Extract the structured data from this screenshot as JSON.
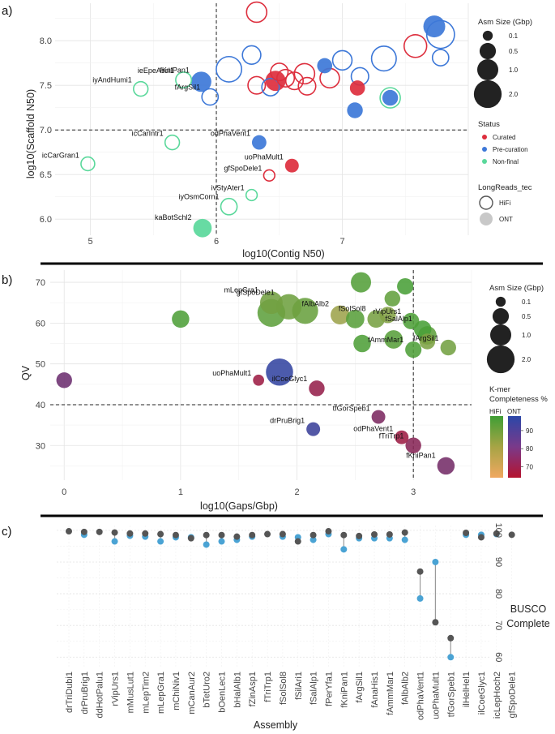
{
  "panels": {
    "a": "a)",
    "b": "b)",
    "c": "c)"
  },
  "colors": {
    "curated": "#dd2e3d",
    "precuration": "#3d78d8",
    "nonfinal": "#5ad89b",
    "busco_hifi": "#555555",
    "busco_ont": "#4aa3d4",
    "kmer_low_hifi": "#f0a860",
    "kmer_high_hifi": "#3f9e35",
    "kmer_low_ont": "#b5142f",
    "kmer_high_ont": "#2b47a8"
  },
  "chart_data": [
    {
      "type": "scatter",
      "id": "a",
      "xlabel": "log10(Contig N50)",
      "ylabel": "log10(Scaffold N50)",
      "xlim": [
        4.72,
        8.0
      ],
      "ylim": [
        5.82,
        8.42
      ],
      "xticks": [
        "5",
        "6",
        "7"
      ],
      "xtick_values": [
        5,
        6,
        7
      ],
      "yticks": [
        "6.0",
        "6.5",
        "7.0",
        "7.5",
        "8.0"
      ],
      "ytick_values": [
        6.0,
        6.5,
        7.0,
        7.5,
        8.0
      ],
      "vline": 6.0,
      "hline": 7.0,
      "legends": {
        "size_title": "Asm Size (Gbp)",
        "size_labels": [
          "0.1",
          "0.5",
          "1.0",
          "2.0"
        ],
        "size_values": [
          0.1,
          0.5,
          1.0,
          2.0
        ],
        "status_title": "Status",
        "status_labels": [
          "Curated",
          "Pre-curation",
          "Non-final"
        ],
        "tech_title": "LongReads_tec",
        "tech_labels": [
          "HiFi",
          "ONT"
        ]
      },
      "points": [
        {
          "x": 4.98,
          "y": 6.62,
          "size": 0.3,
          "status": "nonfinal",
          "tech": "HiFi",
          "label": "icCarGran1"
        },
        {
          "x": 5.65,
          "y": 6.86,
          "size": 0.35,
          "status": "nonfinal",
          "tech": "HiFi",
          "label": "icCarIntr1"
        },
        {
          "x": 5.4,
          "y": 7.46,
          "size": 0.35,
          "status": "nonfinal",
          "tech": "HiFi",
          "label": "iyAndHumi1"
        },
        {
          "x": 5.74,
          "y": 7.56,
          "size": 0.45,
          "status": "nonfinal",
          "tech": "HiFi",
          "label": "ieEpeAssi1"
        },
        {
          "x": 5.88,
          "y": 7.54,
          "size": 0.9,
          "status": "precuration",
          "tech": "ONT",
          "label": "fKniPan1"
        },
        {
          "x": 5.95,
          "y": 7.37,
          "size": 0.5,
          "status": "precuration",
          "tech": "HiFi",
          "label": "fArgSil1"
        },
        {
          "x": 5.89,
          "y": 5.9,
          "size": 0.7,
          "status": "nonfinal",
          "tech": "ONT",
          "label": "kaBotSchl2"
        },
        {
          "x": 6.1,
          "y": 6.14,
          "size": 0.5,
          "status": "nonfinal",
          "tech": "HiFi",
          "label": "iyOsmCorn1"
        },
        {
          "x": 6.28,
          "y": 6.27,
          "size": 0.15,
          "status": "nonfinal",
          "tech": "HiFi",
          "label": "ivStyAter1"
        },
        {
          "x": 6.42,
          "y": 6.49,
          "size": 0.15,
          "status": "curated",
          "tech": "HiFi",
          "label": "gfSpoDele1"
        },
        {
          "x": 6.6,
          "y": 6.6,
          "size": 0.3,
          "status": "curated",
          "tech": "ONT",
          "label": "uoPhaMult1"
        },
        {
          "x": 6.34,
          "y": 6.86,
          "size": 0.35,
          "status": "precuration",
          "tech": "ONT",
          "label": "odPhaVent1"
        },
        {
          "x": 6.1,
          "y": 7.68,
          "size": 1.6,
          "status": "precuration",
          "tech": "HiFi",
          "label": ""
        },
        {
          "x": 6.32,
          "y": 8.32,
          "size": 0.9,
          "status": "curated",
          "tech": "HiFi",
          "label": ""
        },
        {
          "x": 6.28,
          "y": 7.84,
          "size": 0.7,
          "status": "precuration",
          "tech": "HiFi",
          "label": ""
        },
        {
          "x": 6.32,
          "y": 7.5,
          "size": 0.6,
          "status": "curated",
          "tech": "HiFi",
          "label": ""
        },
        {
          "x": 6.43,
          "y": 7.48,
          "size": 0.6,
          "status": "precuration",
          "tech": "HiFi",
          "label": ""
        },
        {
          "x": 6.47,
          "y": 7.55,
          "size": 0.9,
          "status": "curated",
          "tech": "ONT",
          "label": ""
        },
        {
          "x": 6.5,
          "y": 7.65,
          "size": 0.6,
          "status": "curated",
          "tech": "HiFi",
          "label": ""
        },
        {
          "x": 6.55,
          "y": 7.58,
          "size": 0.6,
          "status": "curated",
          "tech": "HiFi",
          "label": ""
        },
        {
          "x": 6.62,
          "y": 7.55,
          "size": 0.6,
          "status": "curated",
          "tech": "HiFi",
          "label": ""
        },
        {
          "x": 6.7,
          "y": 7.63,
          "size": 0.9,
          "status": "curated",
          "tech": "HiFi",
          "label": ""
        },
        {
          "x": 6.72,
          "y": 7.49,
          "size": 0.6,
          "status": "curated",
          "tech": "HiFi",
          "label": ""
        },
        {
          "x": 6.9,
          "y": 7.58,
          "size": 0.8,
          "status": "curated",
          "tech": "HiFi",
          "label": ""
        },
        {
          "x": 6.86,
          "y": 7.72,
          "size": 0.4,
          "status": "precuration",
          "tech": "ONT",
          "label": ""
        },
        {
          "x": 7.0,
          "y": 7.78,
          "size": 0.8,
          "status": "precuration",
          "tech": "HiFi",
          "label": ""
        },
        {
          "x": 7.12,
          "y": 7.47,
          "size": 0.4,
          "status": "curated",
          "tech": "ONT",
          "label": ""
        },
        {
          "x": 7.1,
          "y": 7.22,
          "size": 0.45,
          "status": "precuration",
          "tech": "ONT",
          "label": ""
        },
        {
          "x": 7.14,
          "y": 7.6,
          "size": 0.6,
          "status": "precuration",
          "tech": "HiFi",
          "label": ""
        },
        {
          "x": 7.33,
          "y": 7.8,
          "size": 1.5,
          "status": "precuration",
          "tech": "HiFi",
          "label": ""
        },
        {
          "x": 7.38,
          "y": 7.36,
          "size": 0.9,
          "status": "nonfinal",
          "tech": "HiFi",
          "label": ""
        },
        {
          "x": 7.38,
          "y": 7.36,
          "size": 0.45,
          "status": "precuration",
          "tech": "ONT",
          "label": ""
        },
        {
          "x": 7.58,
          "y": 7.94,
          "size": 1.2,
          "status": "curated",
          "tech": "HiFi",
          "label": ""
        },
        {
          "x": 7.73,
          "y": 8.16,
          "size": 1.1,
          "status": "precuration",
          "tech": "ONT",
          "label": ""
        },
        {
          "x": 7.78,
          "y": 8.07,
          "size": 2.0,
          "status": "precuration",
          "tech": "HiFi",
          "label": ""
        },
        {
          "x": 7.78,
          "y": 7.81,
          "size": 0.5,
          "status": "precuration",
          "tech": "HiFi",
          "label": ""
        }
      ]
    },
    {
      "type": "scatter",
      "id": "b",
      "xlabel": "log10(Gaps/Gbp)",
      "ylabel": "QV",
      "xlim": [
        -0.12,
        3.5
      ],
      "ylim": [
        21.5,
        73
      ],
      "xticks": [
        "0",
        "1",
        "2",
        "3"
      ],
      "xtick_values": [
        0,
        1,
        2,
        3
      ],
      "yticks": [
        "30",
        "40",
        "50",
        "60",
        "70"
      ],
      "ytick_values": [
        30,
        40,
        50,
        60,
        70
      ],
      "vline": 3.0,
      "hline": 40,
      "legends": {
        "size_title": "Asm Size (Gbp)",
        "size_labels": [
          "0.1",
          "0.5",
          "1.0",
          "2.0"
        ],
        "size_values": [
          0.1,
          0.5,
          1.0,
          2.0
        ],
        "kmer_title_1": "K-mer",
        "kmer_title_2": "Completeness %",
        "kmer_hifi": "HiFi",
        "kmer_ont": "ONT",
        "kmer_ticks": [
          "90",
          "80",
          "70"
        ],
        "kmer_tick_values": [
          90,
          80,
          70
        ],
        "kmer_range": [
          64,
          98
        ]
      },
      "points": [
        {
          "x": 0.0,
          "y": 46,
          "size": 0.45,
          "tech": "ONT",
          "kmer": 82,
          "label": ""
        },
        {
          "x": 1.0,
          "y": 61,
          "size": 0.6,
          "tech": "HiFi",
          "kmer": 95,
          "label": ""
        },
        {
          "x": 1.67,
          "y": 46,
          "size": 0.15,
          "tech": "ONT",
          "kmer": 70,
          "label": "uoPhaMult1"
        },
        {
          "x": 1.85,
          "y": 48,
          "size": 1.9,
          "tech": "ONT",
          "kmer": 96,
          "label": ""
        },
        {
          "x": 1.78,
          "y": 65,
          "size": 1.2,
          "tech": "HiFi",
          "kmer": 88,
          "label": "mLepGra1"
        },
        {
          "x": 1.78,
          "y": 62.5,
          "size": 2.0,
          "tech": "HiFi",
          "kmer": 92,
          "label": ""
        },
        {
          "x": 1.93,
          "y": 64,
          "size": 1.6,
          "tech": "HiFi",
          "kmer": 89,
          "label": "gfSpoDele1"
        },
        {
          "x": 2.07,
          "y": 63,
          "size": 1.7,
          "tech": "HiFi",
          "kmer": 90,
          "label": ""
        },
        {
          "x": 2.17,
          "y": 44,
          "size": 0.45,
          "tech": "ONT",
          "kmer": 72,
          "label": "ilCoeGlyc1"
        },
        {
          "x": 2.14,
          "y": 34,
          "size": 0.3,
          "tech": "ONT",
          "kmer": 94,
          "label": "drPruBrig1"
        },
        {
          "x": 2.37,
          "y": 62,
          "size": 0.75,
          "tech": "HiFi",
          "kmer": 80,
          "label": "fAlbAlb2"
        },
        {
          "x": 2.55,
          "y": 70,
          "size": 0.9,
          "tech": "HiFi",
          "kmer": 94,
          "label": ""
        },
        {
          "x": 2.5,
          "y": 61,
          "size": 0.7,
          "tech": "HiFi",
          "kmer": 93,
          "label": ""
        },
        {
          "x": 2.56,
          "y": 55,
          "size": 0.6,
          "tech": "HiFi",
          "kmer": 95,
          "label": ""
        },
        {
          "x": 2.68,
          "y": 61,
          "size": 0.6,
          "tech": "HiFi",
          "kmer": 87,
          "label": "fSolSol8"
        },
        {
          "x": 2.78,
          "y": 62,
          "size": 0.5,
          "tech": "HiFi",
          "kmer": 85,
          "label": ""
        },
        {
          "x": 2.82,
          "y": 66,
          "size": 0.45,
          "tech": "HiFi",
          "kmer": 91,
          "label": ""
        },
        {
          "x": 2.83,
          "y": 56,
          "size": 0.7,
          "tech": "HiFi",
          "kmer": 93,
          "label": ""
        },
        {
          "x": 2.93,
          "y": 69,
          "size": 0.5,
          "tech": "HiFi",
          "kmer": 96,
          "label": ""
        },
        {
          "x": 2.98,
          "y": 60.5,
          "size": 0.5,
          "tech": "HiFi",
          "kmer": 95,
          "label": "rVipUrs1"
        },
        {
          "x": 3.0,
          "y": 53.5,
          "size": 0.5,
          "tech": "HiFi",
          "kmer": 95,
          "label": "fAmmMar1"
        },
        {
          "x": 3.08,
          "y": 58.5,
          "size": 0.6,
          "tech": "HiFi",
          "kmer": 96,
          "label": "fSalAlp1"
        },
        {
          "x": 3.12,
          "y": 57,
          "size": 0.7,
          "tech": "HiFi",
          "kmer": 92,
          "label": ""
        },
        {
          "x": 3.12,
          "y": 55.5,
          "size": 0.45,
          "tech": "HiFi",
          "kmer": 86,
          "label": ""
        },
        {
          "x": 3.3,
          "y": 54,
          "size": 0.45,
          "tech": "HiFi",
          "kmer": 88,
          "label": "fArgSil1"
        },
        {
          "x": 2.7,
          "y": 37,
          "size": 0.3,
          "tech": "ONT",
          "kmer": 78,
          "label": "tfGorSpeb1"
        },
        {
          "x": 2.9,
          "y": 32,
          "size": 0.3,
          "tech": "ONT",
          "kmer": 70,
          "label": "odPhaVent1"
        },
        {
          "x": 3.0,
          "y": 30,
          "size": 0.45,
          "tech": "ONT",
          "kmer": 75,
          "label": "fTriTrp1"
        },
        {
          "x": 3.28,
          "y": 25,
          "size": 0.6,
          "tech": "ONT",
          "kmer": 80,
          "label": "fKniPan1"
        }
      ]
    },
    {
      "type": "dumbbell",
      "id": "c",
      "xlabel": "Assembly",
      "ylabel_line1": "BUSCO",
      "ylabel_line2": "Complete",
      "ylim": [
        57,
        101.5
      ],
      "yticks": [
        "100",
        "90",
        "80",
        "70",
        "60"
      ],
      "ytick_values": [
        100,
        90,
        80,
        70,
        60
      ],
      "series": [
        {
          "name": "HiFi"
        },
        {
          "name": "ONT"
        }
      ],
      "categories": [
        "drTriDubi1",
        "drPruBrig1",
        "ddHotPalu1",
        "rVipUrs1",
        "mMusLut1",
        "mLepTim2",
        "mLepGra1",
        "mChiNiv1",
        "mCanAur2",
        "bTetUro2",
        "bOenLec1",
        "bHalAlb1",
        "fZinAsp1",
        "fTriTrp1",
        "fSolSol8",
        "fSilAri1",
        "fSalAlp1",
        "fPerYfa1",
        "fKniPan1",
        "fArgSil1",
        "fAnaHis1",
        "fAmmMar1",
        "fAlbAlb2",
        "odPhaVent1",
        "uoPhaMult1",
        "tfGorSpeb1",
        "ilHelHel1",
        "ilCoeGlyc1",
        "icLepHoch2",
        "gfSpoDele1"
      ],
      "hifi": [
        99.7,
        99.5,
        99.5,
        99.3,
        99.0,
        99.0,
        98.8,
        98.5,
        97.5,
        98.5,
        98.5,
        98.0,
        98.5,
        98.8,
        98.8,
        96.5,
        98.5,
        99.7,
        98.5,
        98.2,
        98.7,
        98.7,
        99.3,
        87.0,
        71.0,
        66.0,
        99.2,
        97.8,
        99.0,
        98.6
      ],
      "ont": [
        null,
        98.6,
        null,
        96.5,
        98.3,
        98.0,
        96.5,
        97.8,
        97.8,
        95.5,
        96.5,
        97.0,
        98.0,
        null,
        98.0,
        97.8,
        97.0,
        98.8,
        94.0,
        97.5,
        97.5,
        97.5,
        97.0,
        78.5,
        90.0,
        60.0,
        98.6,
        98.6,
        98.8,
        null
      ]
    }
  ]
}
